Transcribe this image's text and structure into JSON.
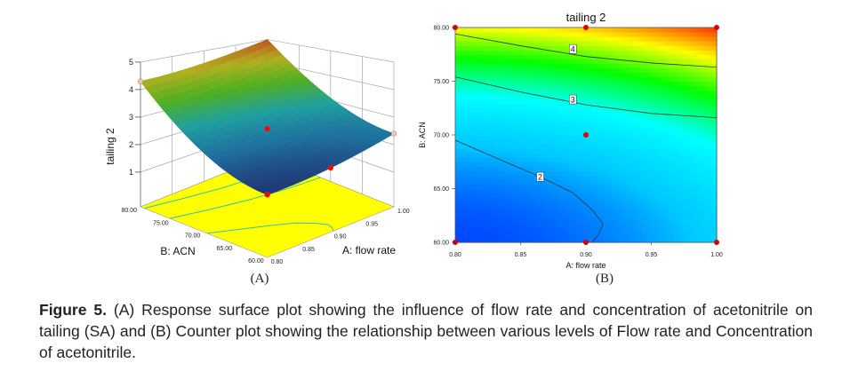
{
  "chart_data": [
    {
      "panel_label": "(A)",
      "type": "surface3d",
      "zlabel": "tailing 2",
      "xlabel": "A: flow rate",
      "ylabel": "B: ACN",
      "x_ticks": [
        "0.80",
        "0.85",
        "0.90",
        "0.95",
        "1.00"
      ],
      "y_ticks": [
        "60.00",
        "65.00",
        "70.00",
        "75.00",
        "80.00"
      ],
      "z_ticks": [
        "1",
        "2",
        "3",
        "4",
        "5"
      ],
      "xlim": [
        0.8,
        1.0
      ],
      "ylim": [
        60,
        80
      ],
      "zlim": [
        1,
        5
      ],
      "colormap": [
        "#203070",
        "#1f6f9f",
        "#20a0a0",
        "#50b020",
        "#b0b020",
        "#c05020"
      ],
      "floor_color": "#ffff00",
      "design_points": [
        {
          "a": 0.9,
          "b": 70,
          "color": "#ff0000"
        },
        {
          "a": 0.8,
          "b": 60,
          "color": "#ff0000"
        },
        {
          "a": 0.9,
          "b": 60,
          "color": "#ff0000"
        },
        {
          "a": 0.8,
          "b": 80,
          "color": "#e8c8a8"
        },
        {
          "a": 1.0,
          "b": 60,
          "color": "#e8c8a8"
        }
      ]
    },
    {
      "panel_label": "(B)",
      "type": "contour",
      "title": "tailing 2",
      "xlabel": "A: flow rate",
      "ylabel": "B: ACN",
      "x_ticks": [
        "0.80",
        "0.85",
        "0.90",
        "0.95",
        "1.00"
      ],
      "y_ticks": [
        "60.00",
        "65.00",
        "70.00",
        "75.00",
        "80.00"
      ],
      "xlim": [
        0.8,
        1.0
      ],
      "ylim": [
        60,
        80
      ],
      "colormap": [
        "#0030ff",
        "#00c8ff",
        "#00ffff",
        "#00ff00",
        "#ffff00",
        "#ff3000"
      ],
      "contours": [
        {
          "level": "4",
          "label_at": [
            0.89,
            78.0
          ],
          "points": [
            [
              0.8,
              79.4
            ],
            [
              0.85,
              78.3
            ],
            [
              0.9,
              77.3
            ],
            [
              0.95,
              76.7
            ],
            [
              1.0,
              76.3
            ]
          ]
        },
        {
          "level": "3",
          "label_at": [
            0.89,
            73.3
          ],
          "points": [
            [
              0.8,
              75.4
            ],
            [
              0.85,
              74.0
            ],
            [
              0.9,
              72.8
            ],
            [
              0.95,
              72.0
            ],
            [
              1.0,
              71.6
            ]
          ]
        },
        {
          "level": "2",
          "label_at": [
            0.865,
            66.1
          ],
          "points": [
            [
              0.8,
              69.5
            ],
            [
              0.84,
              67.4
            ],
            [
              0.865,
              66.1
            ],
            [
              0.89,
              64.6
            ],
            [
              0.905,
              63.0
            ],
            [
              0.913,
              61.7
            ],
            [
              0.91,
              60.8
            ],
            [
              0.905,
              60.0
            ]
          ]
        }
      ],
      "design_points": [
        [
          0.8,
          80
        ],
        [
          0.9,
          80
        ],
        [
          1.0,
          80
        ],
        [
          0.9,
          70
        ],
        [
          0.8,
          60
        ],
        [
          0.9,
          60
        ],
        [
          1.0,
          60
        ]
      ],
      "point_color": "#e00000"
    }
  ],
  "caption": {
    "label": "Figure 5.",
    "text": " (A) Response surface plot showing the influence of flow rate and concentration of acetonitrile on tailing (SA) and (B) Counter plot showing the relationship between various levels of Flow rate and Concentration of acetonitrile."
  }
}
